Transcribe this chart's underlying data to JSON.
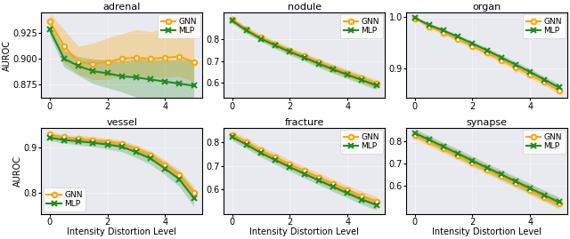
{
  "x": [
    0,
    0.5,
    1,
    1.5,
    2,
    2.5,
    3,
    3.5,
    4,
    4.5,
    5
  ],
  "subplots": [
    {
      "title": "adrenal",
      "gnn_mean": [
        0.936,
        0.912,
        0.897,
        0.895,
        0.897,
        0.9,
        0.901,
        0.9,
        0.901,
        0.902,
        0.897
      ],
      "gnn_lo": [
        0.928,
        0.896,
        0.885,
        0.88,
        0.88,
        0.883,
        0.884,
        0.882,
        0.882,
        0.883,
        0.878
      ],
      "gnn_hi": [
        0.944,
        0.928,
        0.912,
        0.915,
        0.92,
        0.924,
        0.928,
        0.926,
        0.93,
        0.932,
        0.928
      ],
      "mlp_mean": [
        0.928,
        0.9,
        0.893,
        0.888,
        0.886,
        0.883,
        0.882,
        0.88,
        0.878,
        0.876,
        0.874
      ],
      "mlp_lo": [
        0.922,
        0.892,
        0.884,
        0.876,
        0.872,
        0.868,
        0.863,
        0.859,
        0.855,
        0.851,
        0.847
      ],
      "mlp_hi": [
        0.934,
        0.908,
        0.902,
        0.9,
        0.899,
        0.897,
        0.9,
        0.899,
        0.899,
        0.899,
        0.899
      ],
      "ylim": [
        0.862,
        0.945
      ],
      "yticks": [
        0.875,
        0.9,
        0.925
      ],
      "legend_loc": "upper right"
    },
    {
      "title": "nodule",
      "gnn_mean": [
        0.89,
        0.845,
        0.808,
        0.778,
        0.748,
        0.722,
        0.694,
        0.668,
        0.644,
        0.62,
        0.596
      ],
      "gnn_lo": [
        0.878,
        0.832,
        0.794,
        0.763,
        0.733,
        0.706,
        0.677,
        0.65,
        0.626,
        0.601,
        0.577
      ],
      "gnn_hi": [
        0.902,
        0.858,
        0.822,
        0.793,
        0.763,
        0.738,
        0.711,
        0.686,
        0.662,
        0.639,
        0.615
      ],
      "mlp_mean": [
        0.885,
        0.84,
        0.802,
        0.772,
        0.742,
        0.716,
        0.688,
        0.662,
        0.637,
        0.613,
        0.588
      ],
      "mlp_lo": [
        0.873,
        0.827,
        0.789,
        0.757,
        0.727,
        0.7,
        0.671,
        0.644,
        0.619,
        0.594,
        0.569
      ],
      "mlp_hi": [
        0.897,
        0.853,
        0.815,
        0.787,
        0.757,
        0.732,
        0.705,
        0.68,
        0.655,
        0.632,
        0.607
      ],
      "ylim": [
        0.53,
        0.925
      ],
      "yticks": [
        0.6,
        0.7,
        0.8
      ],
      "legend_loc": "upper right"
    },
    {
      "title": "organ",
      "gnn_mean": [
        0.998,
        0.982,
        0.97,
        0.957,
        0.944,
        0.931,
        0.917,
        0.903,
        0.889,
        0.874,
        0.858
      ],
      "gnn_lo": [
        0.996,
        0.979,
        0.967,
        0.953,
        0.94,
        0.926,
        0.912,
        0.897,
        0.883,
        0.868,
        0.851
      ],
      "gnn_hi": [
        1.0,
        0.985,
        0.973,
        0.961,
        0.948,
        0.936,
        0.922,
        0.909,
        0.895,
        0.88,
        0.865
      ],
      "mlp_mean": [
        0.999,
        0.985,
        0.974,
        0.962,
        0.949,
        0.936,
        0.922,
        0.908,
        0.894,
        0.879,
        0.864
      ],
      "mlp_lo": [
        0.997,
        0.982,
        0.97,
        0.958,
        0.945,
        0.931,
        0.917,
        0.902,
        0.888,
        0.873,
        0.857
      ],
      "mlp_hi": [
        1.001,
        0.988,
        0.978,
        0.966,
        0.953,
        0.941,
        0.927,
        0.914,
        0.9,
        0.885,
        0.871
      ],
      "ylim": [
        0.843,
        1.01
      ],
      "yticks": [
        0.9,
        1.0
      ],
      "legend_loc": "upper right"
    },
    {
      "title": "vessel",
      "gnn_mean": [
        0.928,
        0.922,
        0.919,
        0.916,
        0.912,
        0.907,
        0.896,
        0.882,
        0.861,
        0.838,
        0.8
      ],
      "gnn_lo": [
        0.922,
        0.916,
        0.912,
        0.908,
        0.904,
        0.899,
        0.887,
        0.872,
        0.85,
        0.826,
        0.786
      ],
      "gnn_hi": [
        0.934,
        0.928,
        0.926,
        0.924,
        0.92,
        0.915,
        0.905,
        0.892,
        0.872,
        0.85,
        0.814
      ],
      "mlp_mean": [
        0.921,
        0.916,
        0.913,
        0.91,
        0.906,
        0.901,
        0.889,
        0.875,
        0.853,
        0.829,
        0.788
      ],
      "mlp_lo": [
        0.914,
        0.909,
        0.905,
        0.901,
        0.896,
        0.89,
        0.877,
        0.862,
        0.839,
        0.813,
        0.769
      ],
      "mlp_hi": [
        0.928,
        0.923,
        0.921,
        0.919,
        0.916,
        0.912,
        0.901,
        0.888,
        0.867,
        0.845,
        0.807
      ],
      "ylim": [
        0.753,
        0.943
      ],
      "yticks": [
        0.8,
        0.9
      ],
      "legend_loc": "lower left"
    },
    {
      "title": "fracture",
      "gnn_mean": [
        0.832,
        0.8,
        0.765,
        0.736,
        0.706,
        0.678,
        0.65,
        0.622,
        0.596,
        0.57,
        0.548
      ],
      "gnn_lo": [
        0.816,
        0.783,
        0.748,
        0.718,
        0.688,
        0.66,
        0.631,
        0.602,
        0.576,
        0.549,
        0.527
      ],
      "gnn_hi": [
        0.848,
        0.817,
        0.782,
        0.754,
        0.724,
        0.696,
        0.669,
        0.642,
        0.616,
        0.591,
        0.569
      ],
      "mlp_mean": [
        0.822,
        0.79,
        0.754,
        0.724,
        0.694,
        0.666,
        0.638,
        0.61,
        0.583,
        0.556,
        0.533
      ],
      "mlp_lo": [
        0.806,
        0.773,
        0.737,
        0.706,
        0.676,
        0.648,
        0.619,
        0.59,
        0.563,
        0.535,
        0.511
      ],
      "mlp_hi": [
        0.838,
        0.807,
        0.771,
        0.742,
        0.712,
        0.684,
        0.657,
        0.63,
        0.603,
        0.577,
        0.555
      ],
      "ylim": [
        0.495,
        0.862
      ],
      "yticks": [
        0.6,
        0.7,
        0.8
      ],
      "legend_loc": "upper right"
    },
    {
      "title": "synapse",
      "gnn_mean": [
        0.83,
        0.8,
        0.768,
        0.737,
        0.706,
        0.675,
        0.644,
        0.613,
        0.582,
        0.551,
        0.52
      ],
      "gnn_lo": [
        0.812,
        0.781,
        0.749,
        0.718,
        0.686,
        0.655,
        0.623,
        0.592,
        0.56,
        0.529,
        0.498
      ],
      "gnn_hi": [
        0.848,
        0.819,
        0.787,
        0.756,
        0.726,
        0.695,
        0.665,
        0.634,
        0.604,
        0.573,
        0.542
      ],
      "mlp_mean": [
        0.838,
        0.808,
        0.777,
        0.746,
        0.714,
        0.683,
        0.652,
        0.621,
        0.59,
        0.559,
        0.528
      ],
      "mlp_lo": [
        0.82,
        0.789,
        0.758,
        0.726,
        0.694,
        0.663,
        0.631,
        0.6,
        0.568,
        0.537,
        0.506
      ],
      "mlp_hi": [
        0.856,
        0.827,
        0.796,
        0.766,
        0.734,
        0.703,
        0.673,
        0.642,
        0.612,
        0.581,
        0.55
      ],
      "ylim": [
        0.475,
        0.862
      ],
      "yticks": [
        0.6,
        0.7,
        0.8
      ],
      "legend_loc": "upper right"
    }
  ],
  "gnn_color": "#FFA500",
  "mlp_color": "#228B22",
  "gnn_fill_alpha": 0.3,
  "mlp_fill_alpha": 0.25,
  "bg_color": "#E8EAF0",
  "fig_bg_color": "#ffffff",
  "xlabel": "Intensity Distortion Level",
  "ylabel": "AUROC",
  "title_fontsize": 8,
  "label_fontsize": 7,
  "tick_fontsize": 7,
  "legend_fontsize": 6.5,
  "linewidth": 1.5,
  "markersize": 4
}
